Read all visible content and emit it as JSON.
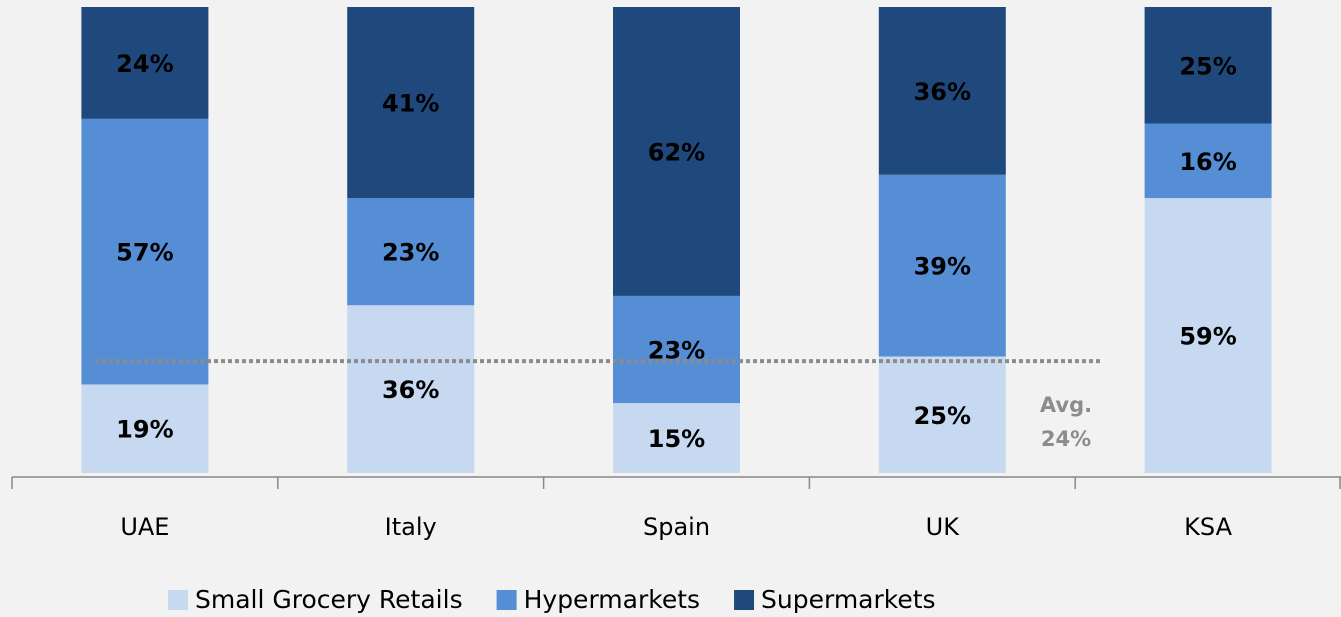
{
  "chart_data": {
    "type": "stacked_bar",
    "categories": [
      "UAE",
      "Italy",
      "Spain",
      "UK",
      "KSA"
    ],
    "series": [
      {
        "name": "Small Grocery Retails",
        "color": "#c6d9f1",
        "values": [
          19,
          36,
          15,
          25,
          59
        ],
        "value_labels": [
          "19%",
          "36%",
          "15%",
          "25%",
          "59%"
        ]
      },
      {
        "name": "Hypermarkets",
        "color": "#558ed5",
        "values": [
          57,
          23,
          23,
          39,
          16
        ],
        "value_labels": [
          "57%",
          "23%",
          "23%",
          "39%",
          "16%"
        ]
      },
      {
        "name": "Supermarkets",
        "color": "#1f497d",
        "values": [
          24,
          41,
          62,
          36,
          25
        ],
        "value_labels": [
          "24%",
          "41%",
          "62%",
          "36%",
          "25%"
        ]
      }
    ],
    "ylim": [
      0,
      100
    ],
    "reference_line": {
      "value": 24,
      "label": "Avg.",
      "value_label": "24%",
      "color": "#8c8c8c"
    },
    "legend": "bottom"
  }
}
